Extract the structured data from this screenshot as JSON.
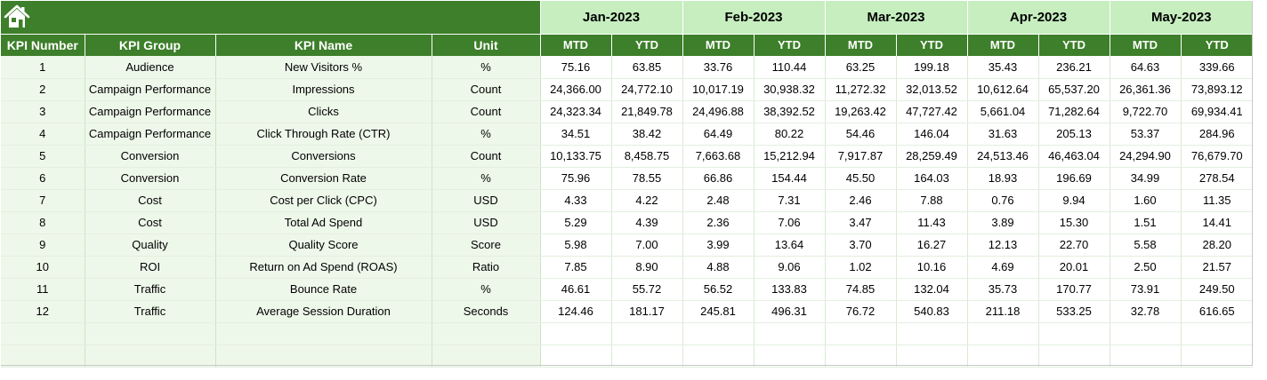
{
  "toolbar": {
    "home_icon": "home-icon"
  },
  "colors": {
    "header_green": "#3d7f2a",
    "month_band": "#c6eebf",
    "info_fill": "#eef8ea"
  },
  "columns": {
    "kpi_number": "KPI Number",
    "kpi_group": "KPI Group",
    "kpi_name": "KPI Name",
    "unit": "Unit",
    "mtd": "MTD",
    "ytd": "YTD"
  },
  "months": [
    "Jan-2023",
    "Feb-2023",
    "Mar-2023",
    "Apr-2023",
    "May-2023"
  ],
  "rows": [
    {
      "num": "1",
      "group": "Audience",
      "name": "New Visitors %",
      "unit": "%",
      "vals": [
        "75.16",
        "63.85",
        "33.76",
        "110.44",
        "63.25",
        "199.18",
        "35.43",
        "236.21",
        "64.63",
        "339.66"
      ]
    },
    {
      "num": "2",
      "group": "Campaign Performance",
      "name": "Impressions",
      "unit": "Count",
      "vals": [
        "24,366.00",
        "24,772.10",
        "10,017.19",
        "30,938.32",
        "11,272.32",
        "32,013.52",
        "10,612.64",
        "65,537.20",
        "26,361.36",
        "73,893.12"
      ]
    },
    {
      "num": "3",
      "group": "Campaign Performance",
      "name": "Clicks",
      "unit": "Count",
      "vals": [
        "24,323.34",
        "21,849.78",
        "24,496.88",
        "38,392.52",
        "19,263.42",
        "47,727.42",
        "5,661.04",
        "71,282.64",
        "9,722.70",
        "69,934.41"
      ]
    },
    {
      "num": "4",
      "group": "Campaign Performance",
      "name": "Click Through Rate (CTR)",
      "unit": "%",
      "vals": [
        "34.51",
        "38.42",
        "64.49",
        "80.22",
        "54.46",
        "146.04",
        "31.63",
        "205.13",
        "53.37",
        "284.96"
      ]
    },
    {
      "num": "5",
      "group": "Conversion",
      "name": "Conversions",
      "unit": "Count",
      "vals": [
        "10,133.75",
        "8,458.75",
        "7,663.68",
        "15,212.94",
        "7,917.87",
        "28,259.49",
        "24,513.46",
        "46,463.04",
        "24,294.90",
        "76,679.70"
      ]
    },
    {
      "num": "6",
      "group": "Conversion",
      "name": "Conversion Rate",
      "unit": "%",
      "vals": [
        "75.96",
        "78.55",
        "66.86",
        "154.44",
        "45.50",
        "164.03",
        "18.93",
        "196.69",
        "34.99",
        "278.54"
      ]
    },
    {
      "num": "7",
      "group": "Cost",
      "name": "Cost per Click (CPC)",
      "unit": "USD",
      "vals": [
        "4.33",
        "4.22",
        "2.48",
        "7.31",
        "2.46",
        "7.88",
        "0.76",
        "9.94",
        "1.60",
        "11.35"
      ]
    },
    {
      "num": "8",
      "group": "Cost",
      "name": "Total Ad Spend",
      "unit": "USD",
      "vals": [
        "5.29",
        "4.39",
        "2.36",
        "7.06",
        "3.47",
        "11.43",
        "3.89",
        "15.30",
        "1.51",
        "14.41"
      ]
    },
    {
      "num": "9",
      "group": "Quality",
      "name": "Quality Score",
      "unit": "Score",
      "vals": [
        "5.98",
        "7.00",
        "3.99",
        "13.64",
        "3.70",
        "16.27",
        "12.13",
        "22.70",
        "5.58",
        "28.20"
      ]
    },
    {
      "num": "10",
      "group": "ROI",
      "name": "Return on Ad Spend (ROAS)",
      "unit": "Ratio",
      "vals": [
        "7.85",
        "8.90",
        "4.88",
        "9.06",
        "1.02",
        "10.16",
        "4.69",
        "20.01",
        "2.50",
        "21.57"
      ]
    },
    {
      "num": "11",
      "group": "Traffic",
      "name": "Bounce Rate",
      "unit": "%",
      "vals": [
        "46.61",
        "55.72",
        "56.52",
        "133.83",
        "74.85",
        "132.04",
        "35.73",
        "170.77",
        "73.91",
        "249.50"
      ]
    },
    {
      "num": "12",
      "group": "Traffic",
      "name": "Average Session Duration",
      "unit": "Seconds",
      "vals": [
        "124.46",
        "181.17",
        "245.81",
        "496.31",
        "76.72",
        "540.83",
        "211.18",
        "533.25",
        "32.78",
        "616.65"
      ]
    }
  ],
  "blank_rows": 2
}
